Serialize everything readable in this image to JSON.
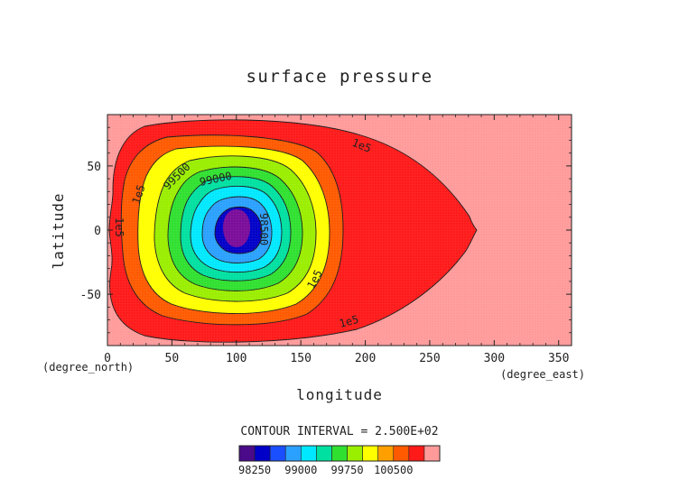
{
  "chart_data": {
    "type": "contour",
    "title": "surface pressure",
    "xlabel": "longitude",
    "ylabel": "latitude",
    "x_unit": "(degree_east)",
    "y_unit": "(degree_north)",
    "xlim": [
      0,
      360
    ],
    "ylim": [
      -90,
      90
    ],
    "x_ticks": [
      "0",
      "50",
      "100",
      "150",
      "200",
      "250",
      "300",
      "350"
    ],
    "y_ticks": [
      "50",
      "0",
      "-50"
    ],
    "contour_interval_text": "CONTOUR INTERVAL = 2.500E+02",
    "colorbar_labels": [
      "98250",
      "99000",
      "99750",
      "100500"
    ],
    "contour_labels": [
      "1e5",
      "1e5",
      "1e5",
      "1e5",
      "1e5",
      "99500",
      "99000",
      "98500"
    ],
    "levels": [
      98250,
      98500,
      98750,
      99000,
      99250,
      99500,
      99750,
      100000,
      100250,
      100500
    ],
    "level_colors": [
      "#4b0a8a",
      "#0000c8",
      "#1a4fff",
      "#2aa0ff",
      "#00e8ff",
      "#00e0a0",
      "#30e030",
      "#9aee00",
      "#ffff00",
      "#ffa000",
      "#ff5a00",
      "#ff1a1a",
      "#ff9a9a"
    ],
    "center": {
      "lon": 100,
      "lat": 0
    },
    "max_value": 100500
  }
}
